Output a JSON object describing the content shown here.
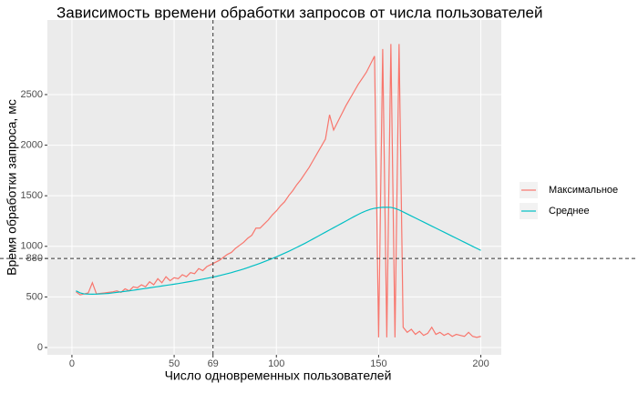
{
  "chart_data": {
    "type": "line",
    "title": "Зависимость времени обработки запросов от числа пользователей",
    "x_label": "Число одновременных пользователей",
    "y_label": "Время обработки запроса, мс",
    "x": [
      2,
      4,
      6,
      8,
      10,
      12,
      14,
      16,
      18,
      20,
      22,
      24,
      26,
      28,
      30,
      32,
      34,
      36,
      38,
      40,
      42,
      44,
      46,
      48,
      50,
      52,
      54,
      56,
      58,
      60,
      62,
      64,
      66,
      68,
      70,
      72,
      74,
      76,
      78,
      80,
      82,
      84,
      86,
      88,
      90,
      92,
      94,
      96,
      98,
      100,
      102,
      104,
      106,
      108,
      110,
      112,
      114,
      116,
      118,
      120,
      122,
      124,
      126,
      128,
      130,
      132,
      134,
      136,
      138,
      140,
      142,
      144,
      146,
      148,
      150,
      152,
      154,
      156,
      158,
      160,
      162,
      164,
      166,
      168,
      170,
      172,
      174,
      176,
      178,
      180,
      182,
      184,
      186,
      188,
      190,
      192,
      194,
      196,
      198,
      200
    ],
    "series": [
      {
        "name": "Максимальное",
        "color": "#F8766D",
        "values": [
          550,
          520,
          530,
          540,
          640,
          530,
          535,
          540,
          545,
          550,
          560,
          545,
          580,
          560,
          600,
          590,
          620,
          600,
          650,
          620,
          680,
          640,
          700,
          660,
          690,
          680,
          720,
          700,
          740,
          730,
          780,
          760,
          800,
          820,
          840,
          860,
          890,
          920,
          940,
          980,
          1010,
          1040,
          1080,
          1110,
          1180,
          1180,
          1220,
          1260,
          1310,
          1350,
          1400,
          1440,
          1500,
          1550,
          1610,
          1660,
          1720,
          1780,
          1850,
          1920,
          1990,
          2060,
          2300,
          2150,
          2230,
          2310,
          2390,
          2460,
          2530,
          2600,
          2660,
          2720,
          2800,
          2880,
          100,
          2950,
          100,
          3000,
          100,
          3000,
          200,
          150,
          180,
          130,
          160,
          120,
          140,
          200,
          130,
          150,
          120,
          140,
          110,
          130,
          120,
          110,
          150,
          110,
          100,
          110
        ]
      },
      {
        "name": "Среднее",
        "color": "#00BFC4",
        "values": [
          560,
          540,
          530,
          528,
          527,
          528,
          530,
          532,
          535,
          540,
          545,
          550,
          555,
          560,
          566,
          572,
          578,
          584,
          590,
          596,
          602,
          608,
          614,
          620,
          626,
          632,
          639,
          646,
          653,
          660,
          668,
          676,
          684,
          692,
          700,
          710,
          720,
          730,
          740,
          752,
          764,
          776,
          790,
          804,
          818,
          832,
          848,
          864,
          880,
          896,
          914,
          932,
          950,
          970,
          990,
          1010,
          1030,
          1052,
          1074,
          1096,
          1118,
          1140,
          1162,
          1184,
          1206,
          1228,
          1250,
          1272,
          1294,
          1315,
          1335,
          1352,
          1366,
          1376,
          1382,
          1386,
          1386,
          1385,
          1375,
          1360,
          1340,
          1320,
          1300,
          1280,
          1260,
          1240,
          1220,
          1200,
          1180,
          1160,
          1140,
          1120,
          1100,
          1080,
          1060,
          1040,
          1020,
          1000,
          980,
          960
        ]
      }
    ],
    "xlim": [
      -12,
      210
    ],
    "ylim": [
      -72,
      3237
    ],
    "xticks": [
      0,
      50,
      69,
      100,
      150,
      200
    ],
    "yticks": [
      0,
      500,
      880,
      1000,
      1500,
      2000,
      2500
    ],
    "vlines": [
      69
    ],
    "hlines": [
      880
    ],
    "grid": true,
    "legend": "right"
  }
}
